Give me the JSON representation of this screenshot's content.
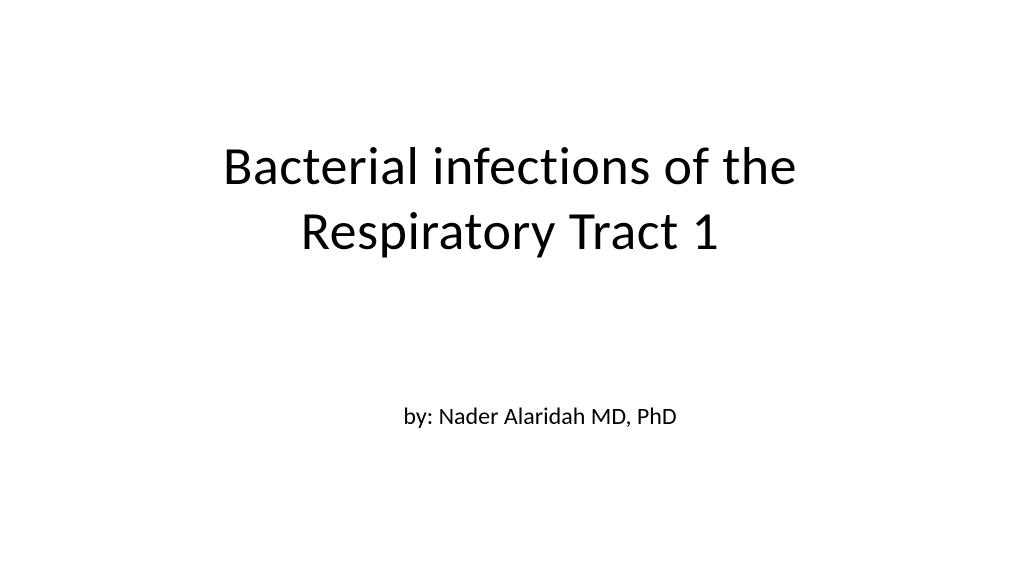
{
  "slide": {
    "title_line1": "Bacterial infections of the",
    "title_line2": "Respiratory Tract 1",
    "author_prefix": "by: ",
    "author_name": "Nader Alaridah MD, PhD",
    "background_color": "#ffffff",
    "title_color": "#000000",
    "title_fontsize": 54,
    "author_color": "#000000",
    "author_fontsize": 24
  }
}
